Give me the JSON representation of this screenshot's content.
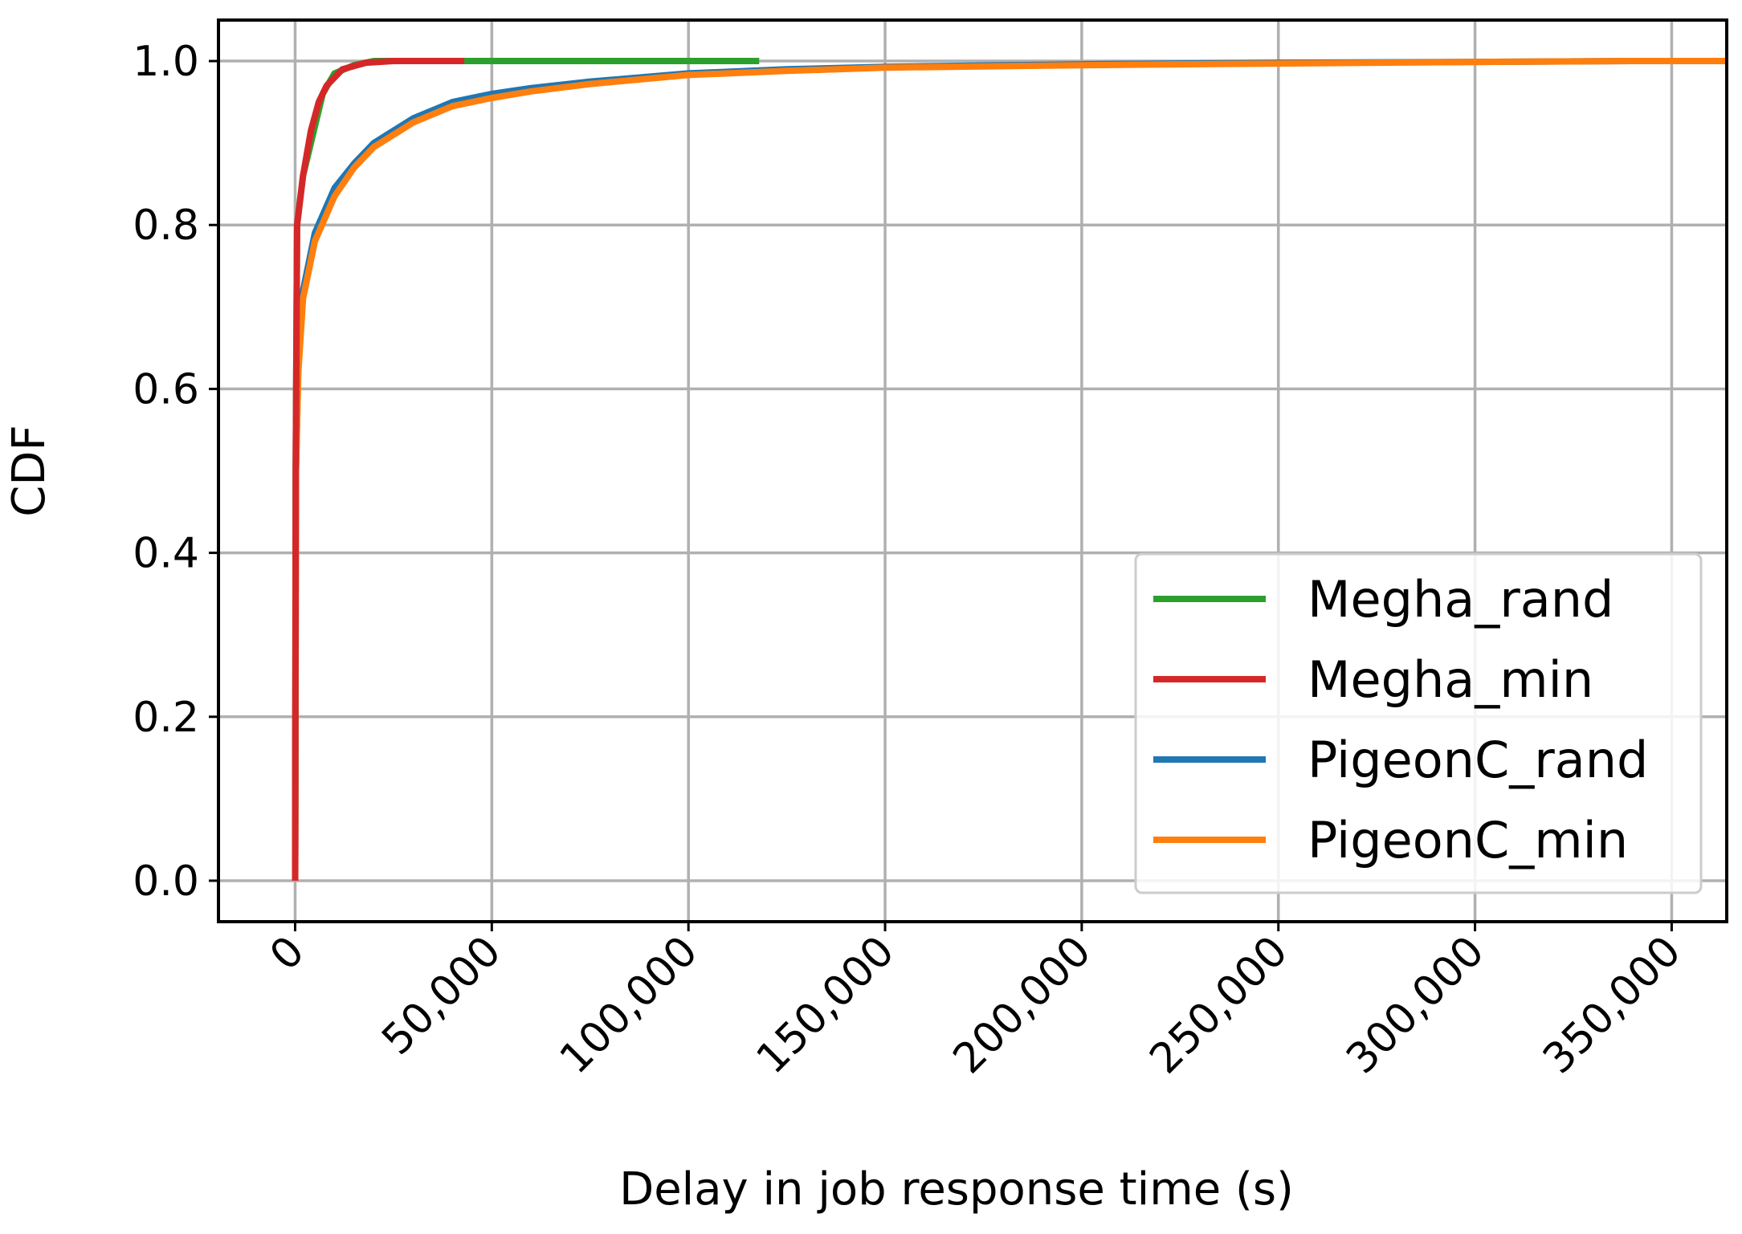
{
  "chart_data": {
    "type": "line",
    "xlabel": "Delay in job response time (s)",
    "ylabel": "CDF",
    "xlim": [
      -19500,
      364000
    ],
    "ylim": [
      -0.05,
      1.05
    ],
    "grid": true,
    "legend_position": "bottom-right",
    "x_ticks": [
      0,
      50000,
      100000,
      150000,
      200000,
      250000,
      300000,
      350000
    ],
    "x_tick_labels": [
      "0",
      "50,000",
      "100,000",
      "150,000",
      "200,000",
      "250,000",
      "300,000",
      "350,000"
    ],
    "y_ticks": [
      0.0,
      0.2,
      0.4,
      0.6,
      0.8,
      1.0
    ],
    "y_tick_labels": [
      "0.0",
      "0.2",
      "0.4",
      "0.6",
      "0.8",
      "1.0"
    ],
    "series": [
      {
        "name": "PigeonC_rand",
        "color": "#1f77b4",
        "points": [
          [
            0,
            0.0
          ],
          [
            200,
            0.5
          ],
          [
            800,
            0.63
          ],
          [
            2000,
            0.72
          ],
          [
            5000,
            0.79
          ],
          [
            10000,
            0.845
          ],
          [
            15000,
            0.875
          ],
          [
            20000,
            0.9
          ],
          [
            30000,
            0.93
          ],
          [
            40000,
            0.95
          ],
          [
            50000,
            0.96
          ],
          [
            60000,
            0.967
          ],
          [
            75000,
            0.975
          ],
          [
            100000,
            0.985
          ],
          [
            125000,
            0.99
          ],
          [
            150000,
            0.993
          ],
          [
            200000,
            0.996
          ],
          [
            250000,
            0.998
          ],
          [
            300000,
            0.999
          ],
          [
            340000,
            1.0
          ],
          [
            390000,
            1.0
          ]
        ]
      },
      {
        "name": "PigeonC_min",
        "color": "#ff7f0e",
        "points": [
          [
            0,
            0.0
          ],
          [
            200,
            0.5
          ],
          [
            800,
            0.62
          ],
          [
            2000,
            0.71
          ],
          [
            5000,
            0.78
          ],
          [
            10000,
            0.835
          ],
          [
            15000,
            0.87
          ],
          [
            20000,
            0.895
          ],
          [
            30000,
            0.925
          ],
          [
            40000,
            0.945
          ],
          [
            50000,
            0.955
          ],
          [
            60000,
            0.963
          ],
          [
            75000,
            0.972
          ],
          [
            100000,
            0.983
          ],
          [
            125000,
            0.988
          ],
          [
            150000,
            0.992
          ],
          [
            200000,
            0.995
          ],
          [
            250000,
            0.997
          ],
          [
            300000,
            0.999
          ],
          [
            340000,
            1.0
          ],
          [
            366000,
            1.0
          ]
        ]
      },
      {
        "name": "Megha_rand",
        "color": "#2ca02c",
        "points": [
          [
            0,
            0.0
          ],
          [
            150,
            0.5
          ],
          [
            500,
            0.8
          ],
          [
            2000,
            0.86
          ],
          [
            4000,
            0.9
          ],
          [
            7000,
            0.96
          ],
          [
            10000,
            0.985
          ],
          [
            15000,
            0.995
          ],
          [
            20000,
            1.0
          ],
          [
            118000,
            1.0
          ]
        ]
      },
      {
        "name": "Megha_min",
        "color": "#d62728",
        "points": [
          [
            0,
            0.0
          ],
          [
            150,
            0.5
          ],
          [
            500,
            0.8
          ],
          [
            2000,
            0.86
          ],
          [
            4000,
            0.915
          ],
          [
            6000,
            0.95
          ],
          [
            8000,
            0.97
          ],
          [
            12000,
            0.99
          ],
          [
            18000,
            0.998
          ],
          [
            25000,
            1.0
          ],
          [
            43000,
            1.0
          ]
        ]
      }
    ]
  }
}
